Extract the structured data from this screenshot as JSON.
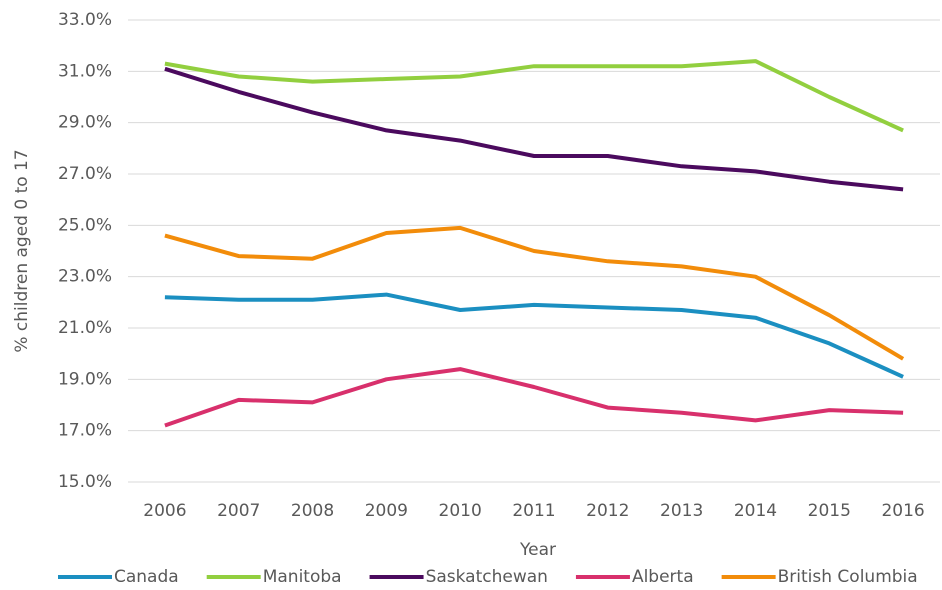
{
  "chart_data": {
    "type": "line",
    "x_label": "Year",
    "y_label": "% children aged 0 to 17",
    "categories": [
      "2006",
      "2007",
      "2008",
      "2009",
      "2010",
      "2011",
      "2012",
      "2013",
      "2014",
      "2015",
      "2016"
    ],
    "series": [
      {
        "name": "Canada",
        "color": "#1b8fc1",
        "values": [
          22.2,
          22.1,
          22.1,
          22.3,
          21.7,
          21.9,
          21.8,
          21.7,
          21.4,
          20.4,
          19.1
        ]
      },
      {
        "name": "Manitoba",
        "color": "#92cf3f",
        "values": [
          31.3,
          30.8,
          30.6,
          30.7,
          30.8,
          31.2,
          31.2,
          31.2,
          31.4,
          30.0,
          28.7
        ]
      },
      {
        "name": "Saskatchewan",
        "color": "#4b0a5e",
        "values": [
          31.1,
          30.2,
          29.4,
          28.7,
          28.3,
          27.7,
          27.7,
          27.3,
          27.1,
          26.7,
          26.4
        ]
      },
      {
        "name": "Alberta",
        "color": "#d8306c",
        "values": [
          17.2,
          18.2,
          18.1,
          19.0,
          19.4,
          18.7,
          17.9,
          17.7,
          17.4,
          17.8,
          17.7
        ]
      },
      {
        "name": "British Columbia",
        "color": "#f28c0a",
        "values": [
          24.6,
          23.8,
          23.7,
          24.7,
          24.9,
          24.0,
          23.6,
          23.4,
          23.0,
          21.5,
          19.8
        ]
      }
    ],
    "ylim": [
      15,
      33
    ],
    "yticks": [
      {
        "value": 15,
        "label": "15.0%"
      },
      {
        "value": 17,
        "label": "17.0%"
      },
      {
        "value": 19,
        "label": "19.0%"
      },
      {
        "value": 21,
        "label": "21.0%"
      },
      {
        "value": 23,
        "label": "23.0%"
      },
      {
        "value": 25,
        "label": "25.0%"
      },
      {
        "value": 27,
        "label": "27.0%"
      },
      {
        "value": 29,
        "label": "29.0%"
      },
      {
        "value": 31,
        "label": "31.0%"
      },
      {
        "value": 33,
        "label": "33.0%"
      }
    ],
    "grid": true,
    "legend": "bottom"
  }
}
